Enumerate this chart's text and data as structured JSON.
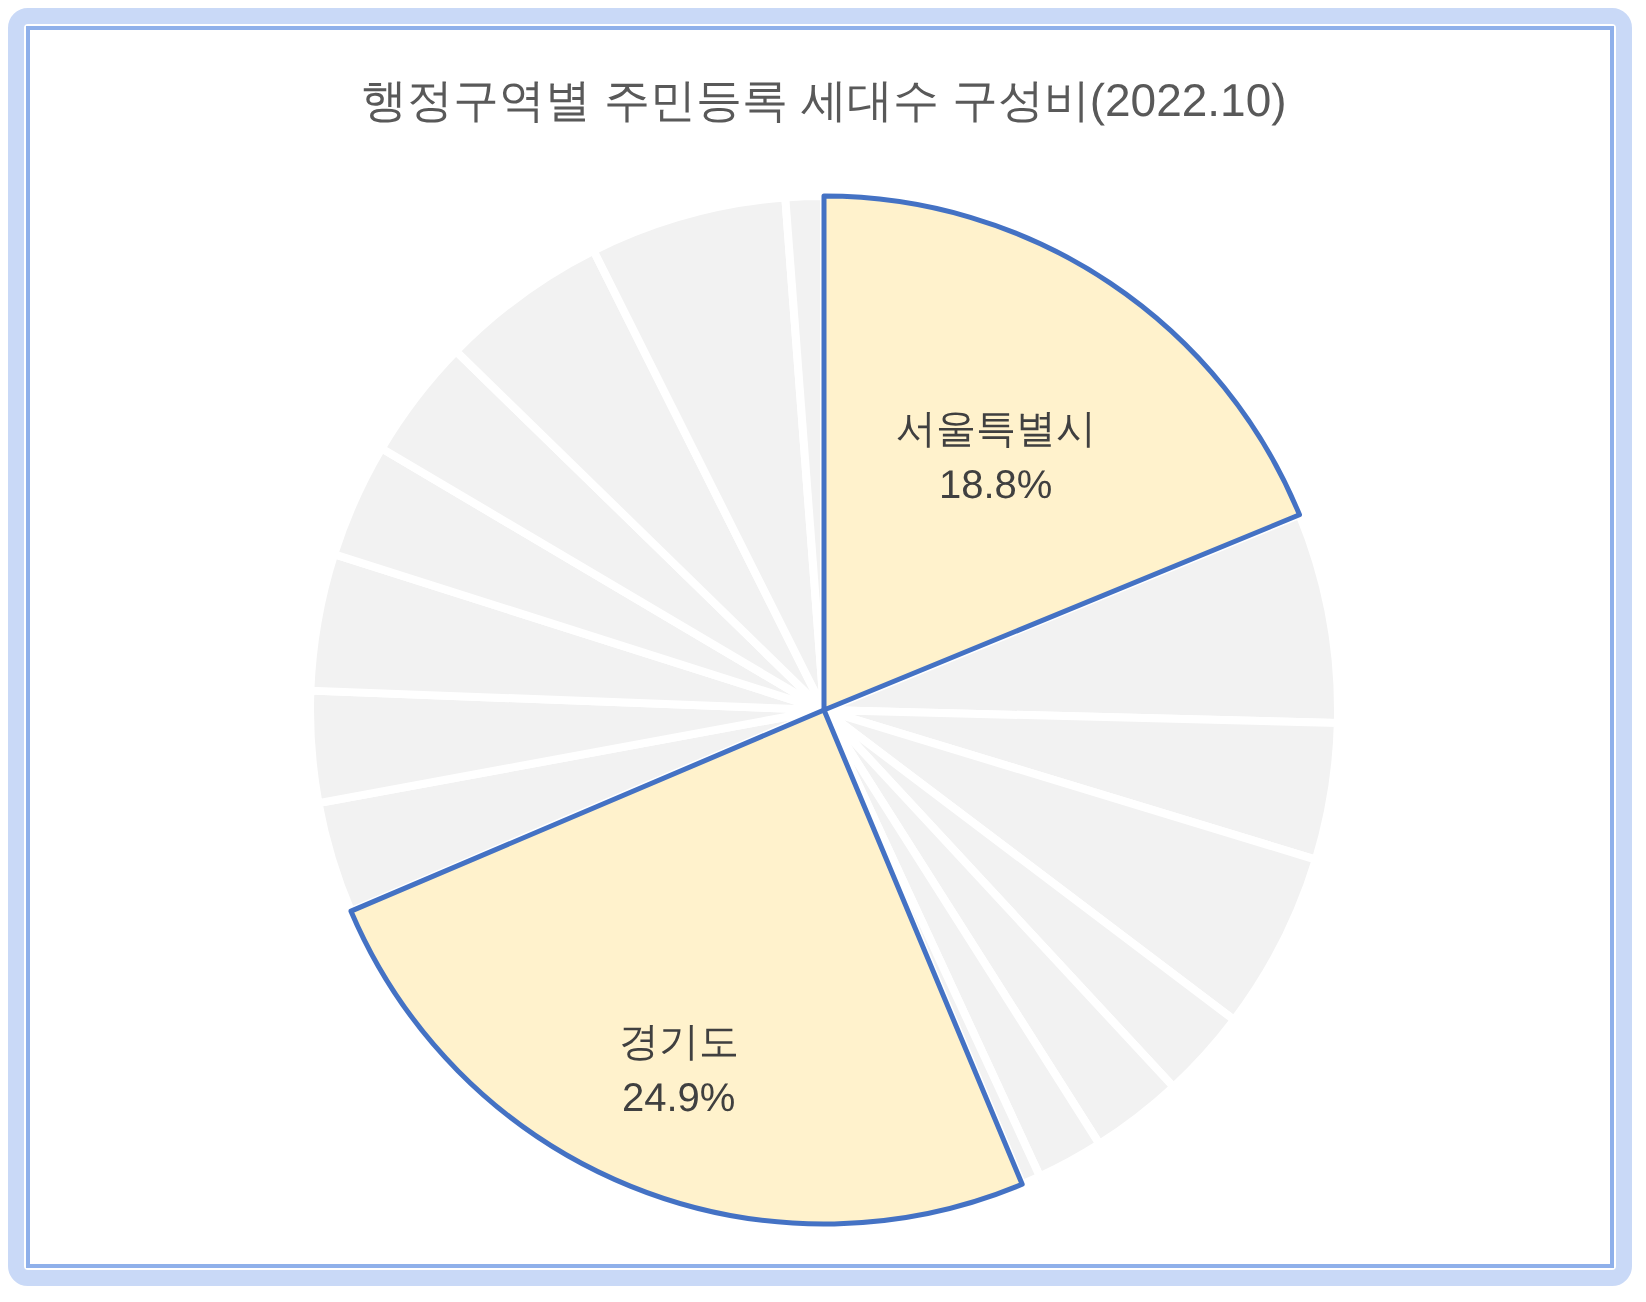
{
  "chart_data": {
    "type": "pie",
    "title": "행정구역별 주민등록 세대수 구성비(2022.10)",
    "categories": [
      "서울특별시",
      null,
      null,
      null,
      null,
      null,
      null,
      null,
      "경기도",
      null,
      null,
      null,
      null,
      null,
      null,
      null,
      null
    ],
    "values": [
      18.8,
      6.6,
      4.3,
      5.6,
      2.8,
      2.9,
      2.1,
      0.6,
      24.9,
      3.5,
      3.5,
      4.3,
      3.6,
      3.8,
      5.3,
      6.2,
      1.2
    ],
    "colors": [
      "#fff2cc",
      "#f2f2f2",
      "#f2f2f2",
      "#f2f2f2",
      "#f2f2f2",
      "#f2f2f2",
      "#f2f2f2",
      "#f2f2f2",
      "#fff2cc",
      "#f2f2f2",
      "#f2f2f2",
      "#f2f2f2",
      "#f2f2f2",
      "#f2f2f2",
      "#f2f2f2",
      "#f2f2f2",
      "#f2f2f2"
    ],
    "value_labels": [
      "18.8%",
      null,
      null,
      null,
      null,
      null,
      null,
      null,
      "24.9%",
      null,
      null,
      null,
      null,
      null,
      null,
      null,
      null
    ]
  }
}
